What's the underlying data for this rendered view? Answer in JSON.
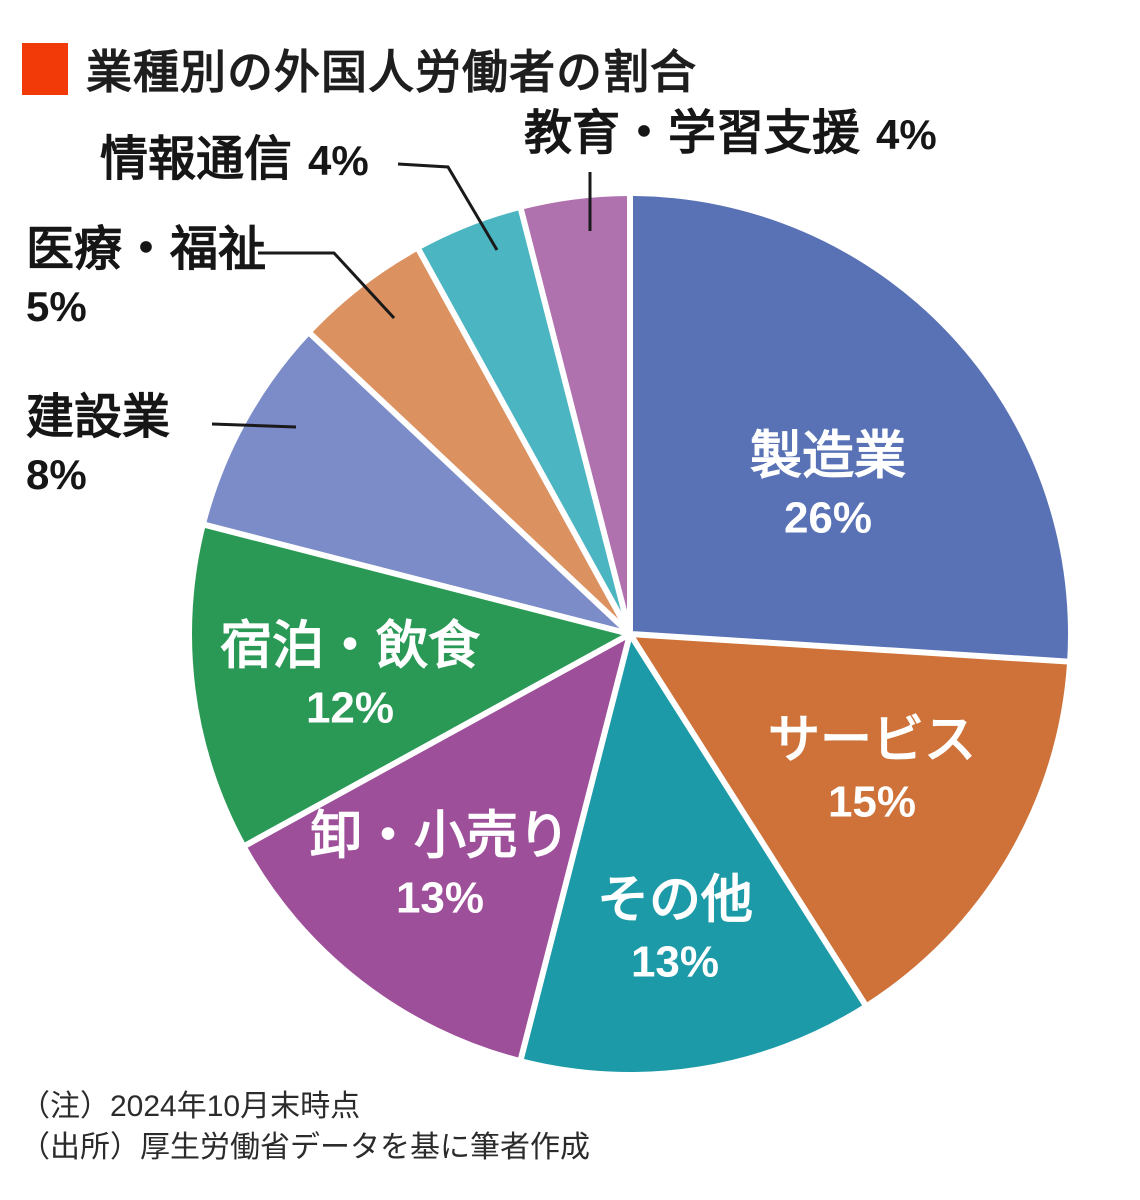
{
  "header": {
    "title": "業種別の外国人労働者の割合",
    "accent_color": "#f23908"
  },
  "notes": {
    "line1": "（注）2024年10月末時点",
    "line2": "（出所）厚生労働省データを基に筆者作成"
  },
  "chart_data": {
    "type": "pie",
    "title": "業種別の外国人労働者の割合",
    "unit": "%",
    "total": 100,
    "start_angle_deg": 0,
    "direction": "clockwise",
    "separator_color": "#ffffff",
    "leader_line_color": "#1a1a1a",
    "inside_label_color": "#ffffff",
    "outside_label_color": "#161616",
    "slices": [
      {
        "id": "manufacturing",
        "label": "製造業",
        "value": 26,
        "pct_text": "26%",
        "color": "#5872b5",
        "label_placement": "inside"
      },
      {
        "id": "service",
        "label": "サービス",
        "value": 15,
        "pct_text": "15%",
        "color": "#ce7239",
        "label_placement": "inside"
      },
      {
        "id": "others",
        "label": "その他",
        "value": 13,
        "pct_text": "13%",
        "color": "#1d9aa8",
        "label_placement": "inside"
      },
      {
        "id": "wholesale-retail",
        "label": "卸・小売り",
        "value": 13,
        "pct_text": "13%",
        "color": "#9e4f9a",
        "label_placement": "inside"
      },
      {
        "id": "lodging-food",
        "label": "宿泊・飲食",
        "value": 12,
        "pct_text": "12%",
        "color": "#2a9955",
        "label_placement": "inside"
      },
      {
        "id": "construction",
        "label": "建設業",
        "value": 8,
        "pct_text": "8%",
        "color": "#7b8cc8",
        "label_placement": "outside"
      },
      {
        "id": "medical-welfare",
        "label": "医療・福祉",
        "value": 5,
        "pct_text": "5%",
        "color": "#db9160",
        "label_placement": "outside"
      },
      {
        "id": "info-communication",
        "label": "情報通信",
        "value": 4,
        "pct_text": "4%",
        "color": "#4bb5c2",
        "label_placement": "outside"
      },
      {
        "id": "education-support",
        "label": "教育・学習支援",
        "value": 4,
        "pct_text": "4%",
        "color": "#b072ae",
        "label_placement": "outside"
      }
    ]
  }
}
